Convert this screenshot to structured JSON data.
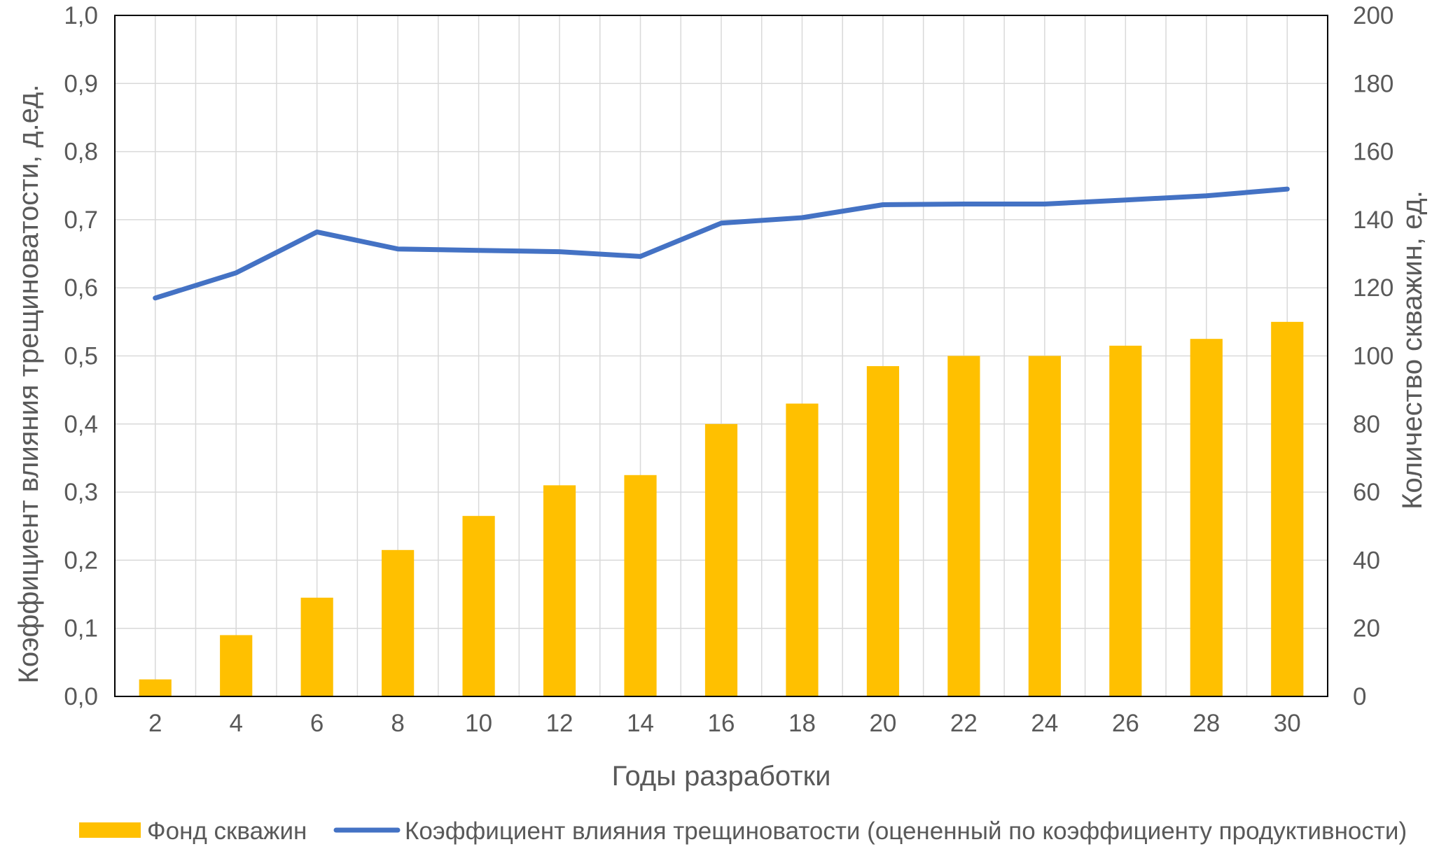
{
  "chart_data": {
    "type": "bar",
    "categories": [
      "2",
      "4",
      "6",
      "8",
      "10",
      "12",
      "14",
      "16",
      "18",
      "20",
      "22",
      "24",
      "26",
      "28",
      "30"
    ],
    "series": [
      {
        "name": "Фонд скважин",
        "kind": "bar",
        "axis": "right",
        "color": "#FFC000",
        "values": [
          5,
          18,
          29,
          43,
          53,
          62,
          65,
          80,
          86,
          97,
          100,
          100,
          103,
          105,
          110
        ]
      },
      {
        "name": "Коэффициент влияния трещиноватости (оцененный по коэффициенту продуктивности)",
        "kind": "line",
        "axis": "left",
        "color": "#4472C4",
        "values": [
          0.585,
          0.622,
          0.682,
          0.657,
          0.655,
          0.653,
          0.646,
          0.695,
          0.703,
          0.722,
          0.723,
          0.723,
          0.729,
          0.735,
          0.745
        ]
      }
    ],
    "xlabel": "Годы разработки",
    "ylabel": "Коэффициент влияния трещиноватости, д.ед.",
    "y2label": "Количество скважин, ед.",
    "ylim": [
      0,
      1
    ],
    "y2lim": [
      0,
      200
    ],
    "yticks": [
      "0,0",
      "0,1",
      "0,2",
      "0,3",
      "0,4",
      "0,5",
      "0,6",
      "0,7",
      "0,8",
      "0,9",
      "1,0"
    ],
    "y2ticks": [
      "0",
      "20",
      "40",
      "60",
      "80",
      "100",
      "120",
      "140",
      "160",
      "180",
      "200"
    ],
    "grid": "vertical",
    "legend": "bottom"
  }
}
